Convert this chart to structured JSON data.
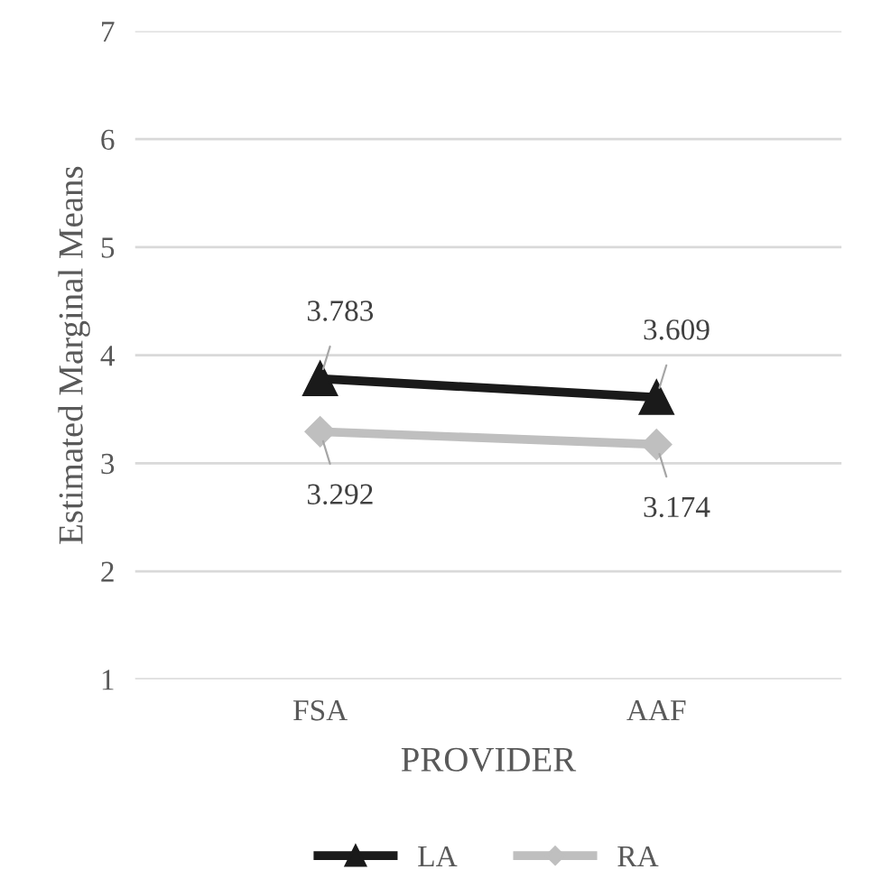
{
  "chart_data": {
    "type": "line",
    "xlabel": "PROVIDER",
    "ylabel": "Estimated Marginal Means",
    "categories": [
      "FSA",
      "AAF"
    ],
    "series": [
      {
        "name": "LA",
        "color": "#1a1a1a",
        "values": [
          3.783,
          3.609
        ],
        "marker": "triangle"
      },
      {
        "name": "RA",
        "color": "#bfbfbf",
        "values": [
          3.292,
          3.174
        ],
        "marker": "diamond"
      }
    ],
    "ylim": [
      1,
      7
    ],
    "yticks": [
      1,
      2,
      3,
      4,
      5,
      6,
      7
    ],
    "grid": "y",
    "legend": "bottom",
    "data_labels": true,
    "line_style": "solid"
  }
}
